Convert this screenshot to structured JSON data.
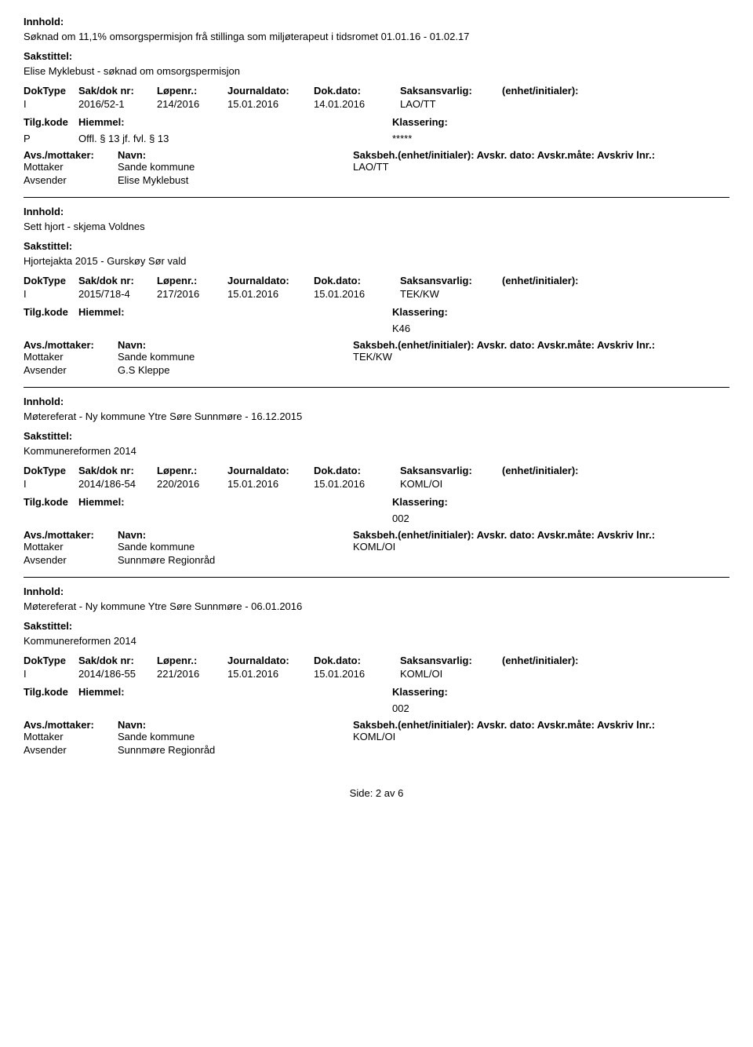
{
  "labels": {
    "innhold": "Innhold:",
    "sakstittel": "Sakstittel:",
    "doktype": "DokType",
    "sakdok": "Sak/dok nr:",
    "lopenr": "Løpenr.:",
    "journaldato": "Journaldato:",
    "dokdato": "Dok.dato:",
    "saksansvarlig": "Saksansvarlig:",
    "enhet": "(enhet/initialer):",
    "tilgkode": "Tilg.kode",
    "hjemmel": "Hiemmel:",
    "klassering": "Klassering:",
    "avsmottaker": "Avs./mottaker:",
    "navn": "Navn:",
    "saksbeh_line": "Saksbeh.(enhet/initialer): Avskr. dato:  Avskr.måte:  Avskriv lnr.:",
    "mottaker": "Mottaker",
    "avsender": "Avsender"
  },
  "records": [
    {
      "innhold": "Søknad om 11,1% omsorgspermisjon frå stillinga som miljøterapeut i tidsromet 01.01.16 - 01.02.17",
      "sakstittel": "Elise Myklebust - søknad om omsorgspermisjon",
      "doktype": "I",
      "sakdok": "2016/52-1",
      "lopenr": "214/2016",
      "journaldato": "15.01.2016",
      "dokdato": "14.01.2016",
      "saksansvarlig": "LAO/TT",
      "enhet": "",
      "tilgkode": "P",
      "hjemmel": "Offl. § 13 jf. fvl. § 13",
      "klassering": "*****",
      "mottaker_navn": "Sande kommune",
      "mottaker_saksbeh": "LAO/TT",
      "avsender_navn": "Elise Myklebust"
    },
    {
      "innhold": "Sett hjort - skjema Voldnes",
      "sakstittel": "Hjortejakta 2015 - Gurskøy Sør vald",
      "doktype": "I",
      "sakdok": "2015/718-4",
      "lopenr": "217/2016",
      "journaldato": "15.01.2016",
      "dokdato": "15.01.2016",
      "saksansvarlig": "TEK/KW",
      "enhet": "",
      "tilgkode": "",
      "hjemmel": "",
      "klassering": "K46",
      "mottaker_navn": "Sande kommune",
      "mottaker_saksbeh": "TEK/KW",
      "avsender_navn": "G.S Kleppe"
    },
    {
      "innhold": "Møtereferat - Ny kommune Ytre Søre Sunnmøre - 16.12.2015",
      "sakstittel": "Kommunereformen 2014",
      "doktype": "I",
      "sakdok": "2014/186-54",
      "lopenr": "220/2016",
      "journaldato": "15.01.2016",
      "dokdato": "15.01.2016",
      "saksansvarlig": "KOML/OI",
      "enhet": "",
      "tilgkode": "",
      "hjemmel": "",
      "klassering": "002",
      "mottaker_navn": "Sande kommune",
      "mottaker_saksbeh": "KOML/OI",
      "avsender_navn": "Sunnmøre Regionråd"
    },
    {
      "innhold": "Møtereferat - Ny kommune Ytre Søre Sunnmøre - 06.01.2016",
      "sakstittel": "Kommunereformen 2014",
      "doktype": "I",
      "sakdok": "2014/186-55",
      "lopenr": "221/2016",
      "journaldato": "15.01.2016",
      "dokdato": "15.01.2016",
      "saksansvarlig": "KOML/OI",
      "enhet": "",
      "tilgkode": "",
      "hjemmel": "",
      "klassering": "002",
      "mottaker_navn": "Sande kommune",
      "mottaker_saksbeh": "KOML/OI",
      "avsender_navn": "Sunnmøre Regionråd"
    }
  ],
  "footer": "Side:  2 av 6"
}
